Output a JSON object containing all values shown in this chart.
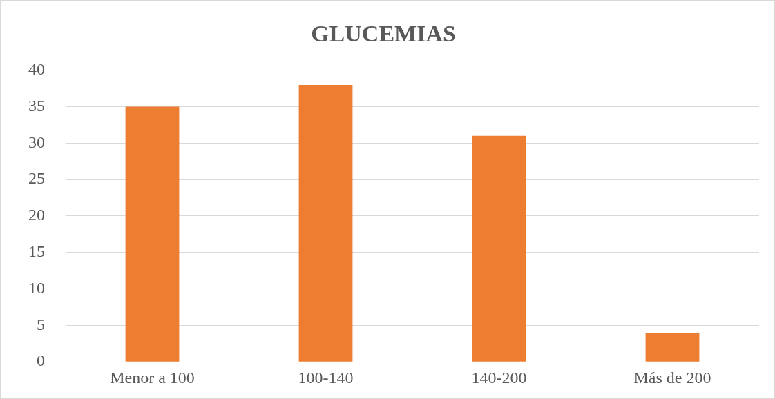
{
  "chart_data": {
    "type": "bar",
    "title": "GLUCEMIAS",
    "categories": [
      "Menor a 100",
      "100-140",
      "140-200",
      "Más de 200"
    ],
    "values": [
      35,
      38,
      31,
      4
    ],
    "color": "#ed7d31",
    "ylim": [
      0,
      40
    ],
    "yticks": [
      0,
      5,
      10,
      15,
      20,
      25,
      30,
      35,
      40
    ],
    "grid": "y",
    "legend": false
  }
}
